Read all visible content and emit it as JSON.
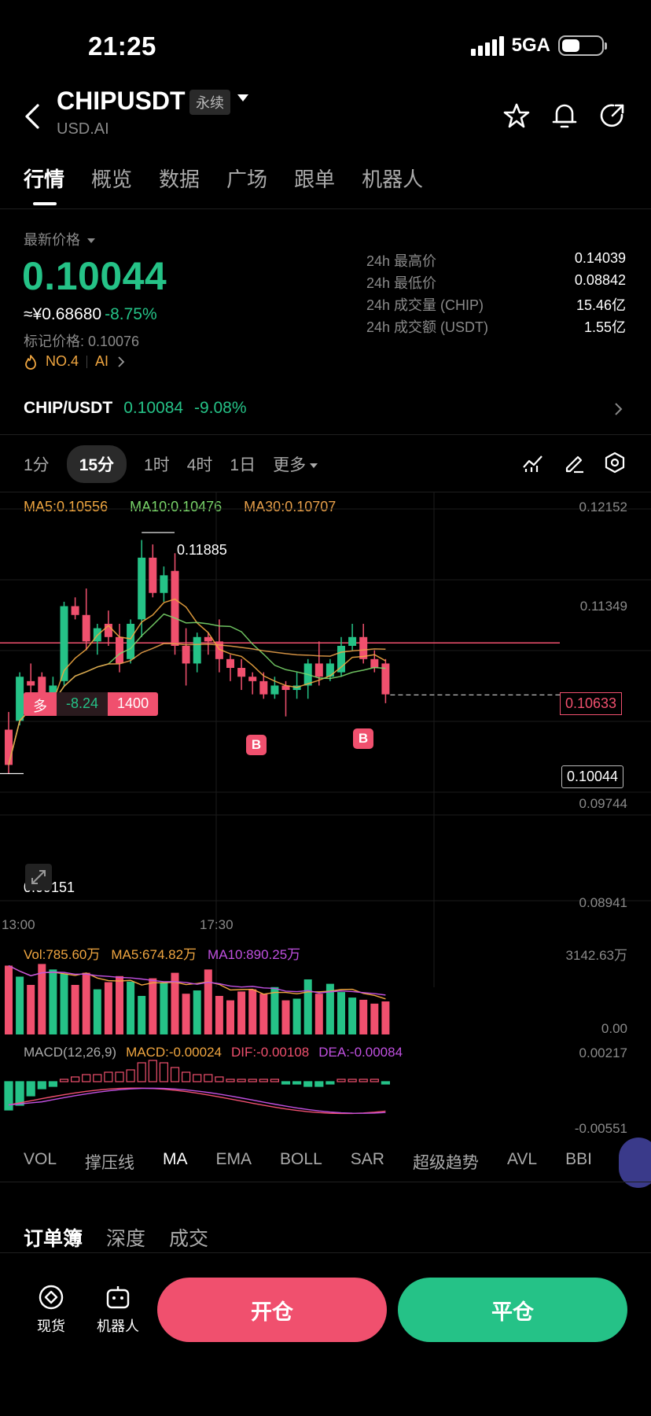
{
  "status": {
    "time": "21:25",
    "network": "5GA"
  },
  "header": {
    "title": "CHIPUSDT",
    "badge": "永续",
    "subtitle": "USD.AI"
  },
  "tabs": [
    "行情",
    "概览",
    "数据",
    "广场",
    "跟单",
    "机器人"
  ],
  "price": {
    "label": "最新价格",
    "last": "0.10044",
    "cny": "≈¥0.68680",
    "change": "-8.75%",
    "mark": "标记价格: 0.10076",
    "rank": "NO.4",
    "tag": "AI"
  },
  "stats": [
    {
      "k": "24h 最高价",
      "v": "0.14039"
    },
    {
      "k": "24h 最低价",
      "v": "0.08842"
    },
    {
      "k": "24h 成交量 (CHIP)",
      "v": "15.46亿"
    },
    {
      "k": "24h 成交额 (USDT)",
      "v": "1.55亿"
    }
  ],
  "spot": {
    "pair": "CHIP/USDT",
    "price": "0.10084",
    "change": "-9.08%"
  },
  "intervals": [
    "1分",
    "15分",
    "1时",
    "4时",
    "1日",
    "更多"
  ],
  "ma": {
    "ma5": "MA5:0.10556",
    "ma10": "MA10:0.10476",
    "ma30": "MA30:0.10707"
  },
  "chart_data": {
    "type": "candlestick",
    "y_ticks": [
      "0.12152",
      "0.11349",
      "0.09744",
      "0.08941"
    ],
    "x_ticks": [
      "13:00",
      "17:30"
    ],
    "high_label": "0.11885",
    "low_label": "0.09151",
    "current_price": "0.10044",
    "order_line": "0.10633",
    "order_tag": {
      "side": "多",
      "pnl": "-8.24",
      "qty": "1400"
    },
    "markers": [
      "B",
      "B"
    ],
    "candles": [
      {
        "o": 0.0965,
        "h": 0.0985,
        "l": 0.0915,
        "c": 0.0925
      },
      {
        "o": 0.0975,
        "h": 0.103,
        "l": 0.097,
        "c": 0.1025
      },
      {
        "o": 0.102,
        "h": 0.104,
        "l": 0.1005,
        "c": 0.1015
      },
      {
        "o": 0.1025,
        "h": 0.103,
        "l": 0.099,
        "c": 0.1
      },
      {
        "o": 0.1,
        "h": 0.1025,
        "l": 0.0995,
        "c": 0.1015
      },
      {
        "o": 0.102,
        "h": 0.111,
        "l": 0.1015,
        "c": 0.1105
      },
      {
        "o": 0.1105,
        "h": 0.1115,
        "l": 0.109,
        "c": 0.1095
      },
      {
        "o": 0.1095,
        "h": 0.1125,
        "l": 0.1055,
        "c": 0.1065
      },
      {
        "o": 0.1065,
        "h": 0.1085,
        "l": 0.105,
        "c": 0.108
      },
      {
        "o": 0.1085,
        "h": 0.11,
        "l": 0.106,
        "c": 0.107
      },
      {
        "o": 0.107,
        "h": 0.1085,
        "l": 0.103,
        "c": 0.104
      },
      {
        "o": 0.1045,
        "h": 0.109,
        "l": 0.104,
        "c": 0.1085
      },
      {
        "o": 0.109,
        "h": 0.118,
        "l": 0.107,
        "c": 0.116
      },
      {
        "o": 0.116,
        "h": 0.1175,
        "l": 0.1115,
        "c": 0.112
      },
      {
        "o": 0.112,
        "h": 0.115,
        "l": 0.111,
        "c": 0.114
      },
      {
        "o": 0.1145,
        "h": 0.1165,
        "l": 0.105,
        "c": 0.106
      },
      {
        "o": 0.106,
        "h": 0.108,
        "l": 0.1015,
        "c": 0.104
      },
      {
        "o": 0.104,
        "h": 0.1075,
        "l": 0.103,
        "c": 0.107
      },
      {
        "o": 0.107,
        "h": 0.1075,
        "l": 0.105,
        "c": 0.1065
      },
      {
        "o": 0.1065,
        "h": 0.109,
        "l": 0.103,
        "c": 0.1045
      },
      {
        "o": 0.1045,
        "h": 0.105,
        "l": 0.102,
        "c": 0.1035
      },
      {
        "o": 0.1035,
        "h": 0.1045,
        "l": 0.101,
        "c": 0.1025
      },
      {
        "o": 0.1025,
        "h": 0.103,
        "l": 0.1005,
        "c": 0.102
      },
      {
        "o": 0.102,
        "h": 0.103,
        "l": 0.1,
        "c": 0.1005
      },
      {
        "o": 0.1005,
        "h": 0.1025,
        "l": 0.1,
        "c": 0.1015
      },
      {
        "o": 0.1015,
        "h": 0.102,
        "l": 0.098,
        "c": 0.101
      },
      {
        "o": 0.101,
        "h": 0.103,
        "l": 0.1,
        "c": 0.1015
      },
      {
        "o": 0.1015,
        "h": 0.1045,
        "l": 0.1,
        "c": 0.104
      },
      {
        "o": 0.104,
        "h": 0.1065,
        "l": 0.1015,
        "c": 0.1025
      },
      {
        "o": 0.1025,
        "h": 0.1045,
        "l": 0.102,
        "c": 0.104
      },
      {
        "o": 0.103,
        "h": 0.107,
        "l": 0.1025,
        "c": 0.106
      },
      {
        "o": 0.106,
        "h": 0.1085,
        "l": 0.1055,
        "c": 0.107
      },
      {
        "o": 0.107,
        "h": 0.1085,
        "l": 0.104,
        "c": 0.1045
      },
      {
        "o": 0.1045,
        "h": 0.1055,
        "l": 0.103,
        "c": 0.1035
      },
      {
        "o": 0.104,
        "h": 0.1045,
        "l": 0.0995,
        "c": 0.1005
      }
    ],
    "volume": {
      "labels": {
        "vol": "Vol:785.60万",
        "ma5": "MA5:674.82万",
        "ma10": "MA10:890.25万"
      },
      "top": "3142.63万",
      "bottom": "0.00",
      "bars": [
        1250,
        1050,
        900,
        1280,
        1180,
        1100,
        900,
        1120,
        820,
        950,
        1060,
        960,
        700,
        1020,
        950,
        1120,
        740,
        800,
        1180,
        700,
        620,
        780,
        820,
        740,
        860,
        620,
        650,
        1000,
        740,
        920,
        770,
        670,
        630,
        560,
        600
      ]
    },
    "macd": {
      "labels": {
        "name": "MACD(12,26,9)",
        "macd": "MACD:-0.00024",
        "dif": "DIF:-0.00108",
        "dea": "DEA:-0.00084"
      },
      "top": "0.00217",
      "bottom": "-0.00551",
      "hist": [
        -0.0012,
        -0.001,
        -0.0006,
        -0.0003,
        -0.0002,
        0.0001,
        0.0002,
        0.0003,
        0.0003,
        0.0004,
        0.0004,
        0.0005,
        0.0008,
        0.0009,
        0.0008,
        0.0006,
        0.0004,
        0.0003,
        0.0003,
        0.0002,
        0.0001,
        0.0001,
        0.0001,
        0.0001,
        0.0001,
        -0.0001,
        -0.0001,
        -0.0002,
        -0.0002,
        -0.0001,
        0.0001,
        0.0001,
        0.0001,
        0.0001,
        -0.0001
      ]
    }
  },
  "indicator_tabs": [
    "VOL",
    "撑压线",
    "MA",
    "EMA",
    "BOLL",
    "SAR",
    "超级趋势",
    "AVL",
    "BBI"
  ],
  "orderbook_tabs": [
    "订单簿",
    "深度",
    "成交"
  ],
  "bottom": {
    "spot": "现货",
    "robot": "机器人",
    "open": "开仓",
    "close": "平仓"
  },
  "colors": {
    "up": "#25c287",
    "down": "#f0506e",
    "ma5": "#f0a640",
    "ma10": "#7ad66a",
    "ma30": "#e8a04a",
    "dea": "#c050e0"
  }
}
